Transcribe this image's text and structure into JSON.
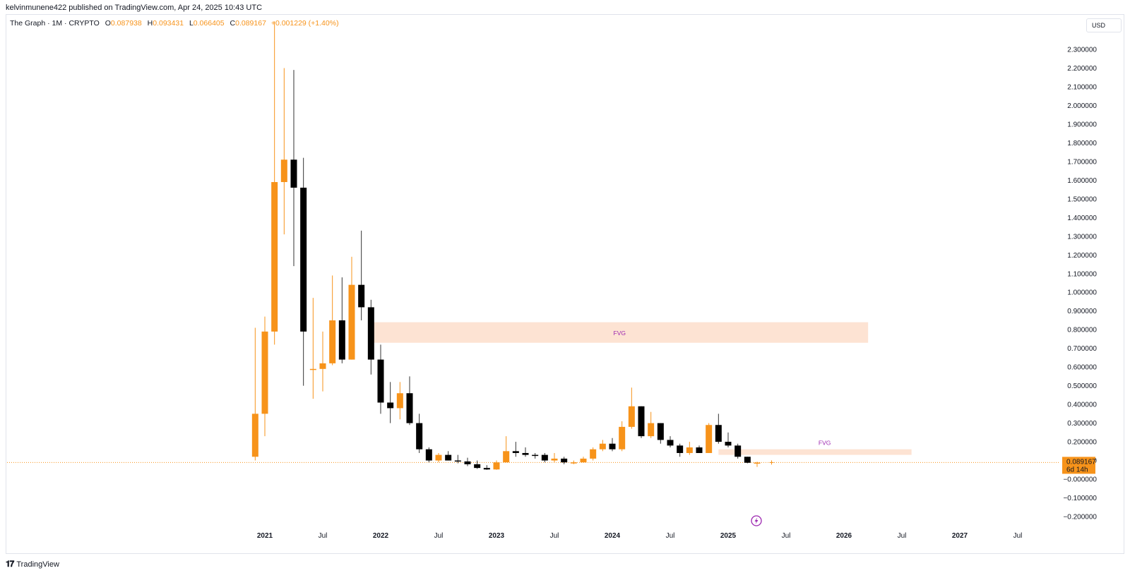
{
  "publish_line": "kelvinmunene422 published on TradingView.com, Apr 24, 2025 10:43 UTC",
  "legend": {
    "symbol": "The Graph · 1M · CRYPTO",
    "o_label": "O",
    "o_value": "0.087938",
    "h_label": "H",
    "h_value": "0.093431",
    "l_label": "L",
    "l_value": "0.066405",
    "c_label": "C",
    "c_value": "0.089167",
    "change": "+0.001229 (+1.40%)"
  },
  "currency_button": "USD",
  "footer": {
    "logo_icon": "tradingview-logo-icon",
    "label": "TradingView"
  },
  "price_label": {
    "value": "0.089167",
    "countdown": "6d 14h"
  },
  "colors": {
    "up": "#f7931a",
    "down": "#000000",
    "fvg_fill": "#fde3d3",
    "fvg_text": "#9c27b0"
  },
  "chart_data": {
    "type": "candlestick",
    "title": "The Graph · 1M · CRYPTO",
    "xlabel": "",
    "ylabel": "",
    "ylim": [
      -0.22,
      2.45
    ],
    "grid": false,
    "y_ticks": [
      "2.300000",
      "2.200000",
      "2.100000",
      "2.000000",
      "1.900000",
      "1.800000",
      "1.700000",
      "1.600000",
      "1.500000",
      "1.400000",
      "1.300000",
      "1.200000",
      "1.100000",
      "1.000000",
      "0.900000",
      "0.800000",
      "0.700000",
      "0.600000",
      "0.500000",
      "0.400000",
      "0.300000",
      "0.200000",
      "0.100000",
      "−0.000000",
      "−0.100000",
      "−0.200000"
    ],
    "x_ticks": [
      {
        "label": "2021",
        "idx": 0
      },
      {
        "label": "Jul",
        "idx": 6
      },
      {
        "label": "2022",
        "idx": 12
      },
      {
        "label": "Jul",
        "idx": 18
      },
      {
        "label": "2023",
        "idx": 24
      },
      {
        "label": "Jul",
        "idx": 30
      },
      {
        "label": "2024",
        "idx": 36
      },
      {
        "label": "Jul",
        "idx": 42
      },
      {
        "label": "2025",
        "idx": 48
      },
      {
        "label": "Jul",
        "idx": 54
      },
      {
        "label": "2026",
        "idx": 60
      },
      {
        "label": "Jul",
        "idx": 66
      },
      {
        "label": "2027",
        "idx": 72
      },
      {
        "label": "Jul",
        "idx": 78
      }
    ],
    "candles": [
      {
        "idx": -1,
        "o": 0.12,
        "h": 0.81,
        "l": 0.1,
        "c": 0.35
      },
      {
        "idx": 0,
        "o": 0.35,
        "h": 0.87,
        "l": 0.23,
        "c": 0.79
      },
      {
        "idx": 1,
        "o": 0.79,
        "h": 2.45,
        "l": 0.72,
        "c": 1.59
      },
      {
        "idx": 2,
        "o": 1.59,
        "h": 2.2,
        "l": 1.31,
        "c": 1.71
      },
      {
        "idx": 3,
        "o": 1.71,
        "h": 2.19,
        "l": 1.14,
        "c": 1.56
      },
      {
        "idx": 4,
        "o": 1.56,
        "h": 1.72,
        "l": 0.5,
        "c": 0.79
      },
      {
        "idx": 5,
        "o": 0.59,
        "h": 0.97,
        "l": 0.43,
        "c": 0.59
      },
      {
        "idx": 6,
        "o": 0.59,
        "h": 0.79,
        "l": 0.47,
        "c": 0.62
      },
      {
        "idx": 7,
        "o": 0.62,
        "h": 1.09,
        "l": 0.61,
        "c": 0.85
      },
      {
        "idx": 8,
        "o": 0.85,
        "h": 1.08,
        "l": 0.62,
        "c": 0.64
      },
      {
        "idx": 9,
        "o": 0.64,
        "h": 1.19,
        "l": 0.64,
        "c": 1.04
      },
      {
        "idx": 10,
        "o": 1.04,
        "h": 1.33,
        "l": 0.85,
        "c": 0.92
      },
      {
        "idx": 11,
        "o": 0.92,
        "h": 0.96,
        "l": 0.56,
        "c": 0.64
      },
      {
        "idx": 12,
        "o": 0.64,
        "h": 0.72,
        "l": 0.35,
        "c": 0.41
      },
      {
        "idx": 13,
        "o": 0.41,
        "h": 0.52,
        "l": 0.3,
        "c": 0.38
      },
      {
        "idx": 14,
        "o": 0.38,
        "h": 0.52,
        "l": 0.32,
        "c": 0.46
      },
      {
        "idx": 15,
        "o": 0.46,
        "h": 0.55,
        "l": 0.29,
        "c": 0.3
      },
      {
        "idx": 16,
        "o": 0.3,
        "h": 0.35,
        "l": 0.14,
        "c": 0.16
      },
      {
        "idx": 17,
        "o": 0.16,
        "h": 0.17,
        "l": 0.09,
        "c": 0.1
      },
      {
        "idx": 18,
        "o": 0.1,
        "h": 0.14,
        "l": 0.09,
        "c": 0.13
      },
      {
        "idx": 19,
        "o": 0.13,
        "h": 0.15,
        "l": 0.1,
        "c": 0.1
      },
      {
        "idx": 20,
        "o": 0.1,
        "h": 0.13,
        "l": 0.085,
        "c": 0.095
      },
      {
        "idx": 21,
        "o": 0.095,
        "h": 0.115,
        "l": 0.07,
        "c": 0.08
      },
      {
        "idx": 22,
        "o": 0.08,
        "h": 0.1,
        "l": 0.055,
        "c": 0.06
      },
      {
        "idx": 23,
        "o": 0.06,
        "h": 0.075,
        "l": 0.05,
        "c": 0.052
      },
      {
        "idx": 24,
        "o": 0.052,
        "h": 0.1,
        "l": 0.05,
        "c": 0.09
      },
      {
        "idx": 25,
        "o": 0.09,
        "h": 0.23,
        "l": 0.09,
        "c": 0.15
      },
      {
        "idx": 26,
        "o": 0.15,
        "h": 0.2,
        "l": 0.12,
        "c": 0.14
      },
      {
        "idx": 27,
        "o": 0.14,
        "h": 0.17,
        "l": 0.12,
        "c": 0.13
      },
      {
        "idx": 28,
        "o": 0.13,
        "h": 0.14,
        "l": 0.11,
        "c": 0.125
      },
      {
        "idx": 29,
        "o": 0.13,
        "h": 0.14,
        "l": 0.09,
        "c": 0.1
      },
      {
        "idx": 30,
        "o": 0.1,
        "h": 0.14,
        "l": 0.09,
        "c": 0.11
      },
      {
        "idx": 31,
        "o": 0.11,
        "h": 0.12,
        "l": 0.08,
        "c": 0.09
      },
      {
        "idx": 32,
        "o": 0.09,
        "h": 0.1,
        "l": 0.08,
        "c": 0.09
      },
      {
        "idx": 33,
        "o": 0.09,
        "h": 0.12,
        "l": 0.09,
        "c": 0.11
      },
      {
        "idx": 34,
        "o": 0.11,
        "h": 0.17,
        "l": 0.1,
        "c": 0.16
      },
      {
        "idx": 35,
        "o": 0.16,
        "h": 0.21,
        "l": 0.15,
        "c": 0.19
      },
      {
        "idx": 36,
        "o": 0.19,
        "h": 0.22,
        "l": 0.15,
        "c": 0.16
      },
      {
        "idx": 37,
        "o": 0.16,
        "h": 0.31,
        "l": 0.15,
        "c": 0.28
      },
      {
        "idx": 38,
        "o": 0.28,
        "h": 0.49,
        "l": 0.27,
        "c": 0.39
      },
      {
        "idx": 39,
        "o": 0.39,
        "h": 0.39,
        "l": 0.22,
        "c": 0.23
      },
      {
        "idx": 40,
        "o": 0.23,
        "h": 0.36,
        "l": 0.22,
        "c": 0.3
      },
      {
        "idx": 41,
        "o": 0.3,
        "h": 0.3,
        "l": 0.19,
        "c": 0.21
      },
      {
        "idx": 42,
        "o": 0.21,
        "h": 0.23,
        "l": 0.17,
        "c": 0.18
      },
      {
        "idx": 43,
        "o": 0.18,
        "h": 0.19,
        "l": 0.12,
        "c": 0.14
      },
      {
        "idx": 44,
        "o": 0.14,
        "h": 0.2,
        "l": 0.13,
        "c": 0.17
      },
      {
        "idx": 45,
        "o": 0.17,
        "h": 0.18,
        "l": 0.14,
        "c": 0.14
      },
      {
        "idx": 46,
        "o": 0.14,
        "h": 0.3,
        "l": 0.14,
        "c": 0.29
      },
      {
        "idx": 47,
        "o": 0.29,
        "h": 0.35,
        "l": 0.19,
        "c": 0.2
      },
      {
        "idx": 48,
        "o": 0.2,
        "h": 0.25,
        "l": 0.17,
        "c": 0.18
      },
      {
        "idx": 49,
        "o": 0.18,
        "h": 0.19,
        "l": 0.11,
        "c": 0.12
      },
      {
        "idx": 50,
        "o": 0.12,
        "h": 0.12,
        "l": 0.085,
        "c": 0.088
      },
      {
        "idx": 51,
        "o": 0.088,
        "h": 0.093,
        "l": 0.066,
        "c": 0.089
      }
    ],
    "zones": [
      {
        "label": "FVG",
        "from_idx": 11,
        "to_idx": 62.5,
        "low": 0.73,
        "high": 0.84
      },
      {
        "label": "FVG",
        "from_idx": 47,
        "to_idx": 67,
        "low": 0.13,
        "high": 0.16
      }
    ],
    "current_price": 0.089167
  }
}
